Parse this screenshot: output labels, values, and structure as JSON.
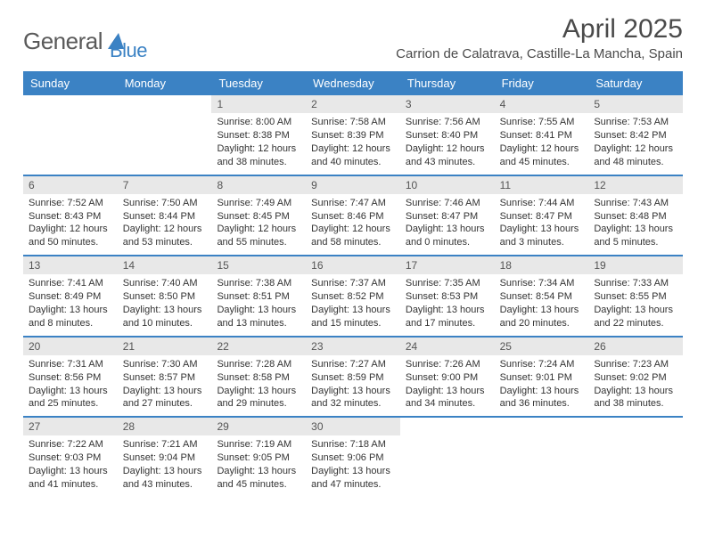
{
  "logo": {
    "word1": "General",
    "word2": "Blue"
  },
  "brand_color": "#3b82c4",
  "title": "April 2025",
  "location": "Carrion de Calatrava, Castille-La Mancha, Spain",
  "day_headers": [
    "Sunday",
    "Monday",
    "Tuesday",
    "Wednesday",
    "Thursday",
    "Friday",
    "Saturday"
  ],
  "colors": {
    "header_bg": "#3b82c4",
    "header_text": "#ffffff",
    "daynum_bg": "#e8e8e8",
    "row_divider": "#3b82c4",
    "body_text": "#333333",
    "title_text": "#4a4a4a"
  },
  "weeks": [
    [
      null,
      null,
      {
        "n": "1",
        "sunrise": "Sunrise: 8:00 AM",
        "sunset": "Sunset: 8:38 PM",
        "daylight": "Daylight: 12 hours and 38 minutes."
      },
      {
        "n": "2",
        "sunrise": "Sunrise: 7:58 AM",
        "sunset": "Sunset: 8:39 PM",
        "daylight": "Daylight: 12 hours and 40 minutes."
      },
      {
        "n": "3",
        "sunrise": "Sunrise: 7:56 AM",
        "sunset": "Sunset: 8:40 PM",
        "daylight": "Daylight: 12 hours and 43 minutes."
      },
      {
        "n": "4",
        "sunrise": "Sunrise: 7:55 AM",
        "sunset": "Sunset: 8:41 PM",
        "daylight": "Daylight: 12 hours and 45 minutes."
      },
      {
        "n": "5",
        "sunrise": "Sunrise: 7:53 AM",
        "sunset": "Sunset: 8:42 PM",
        "daylight": "Daylight: 12 hours and 48 minutes."
      }
    ],
    [
      {
        "n": "6",
        "sunrise": "Sunrise: 7:52 AM",
        "sunset": "Sunset: 8:43 PM",
        "daylight": "Daylight: 12 hours and 50 minutes."
      },
      {
        "n": "7",
        "sunrise": "Sunrise: 7:50 AM",
        "sunset": "Sunset: 8:44 PM",
        "daylight": "Daylight: 12 hours and 53 minutes."
      },
      {
        "n": "8",
        "sunrise": "Sunrise: 7:49 AM",
        "sunset": "Sunset: 8:45 PM",
        "daylight": "Daylight: 12 hours and 55 minutes."
      },
      {
        "n": "9",
        "sunrise": "Sunrise: 7:47 AM",
        "sunset": "Sunset: 8:46 PM",
        "daylight": "Daylight: 12 hours and 58 minutes."
      },
      {
        "n": "10",
        "sunrise": "Sunrise: 7:46 AM",
        "sunset": "Sunset: 8:47 PM",
        "daylight": "Daylight: 13 hours and 0 minutes."
      },
      {
        "n": "11",
        "sunrise": "Sunrise: 7:44 AM",
        "sunset": "Sunset: 8:47 PM",
        "daylight": "Daylight: 13 hours and 3 minutes."
      },
      {
        "n": "12",
        "sunrise": "Sunrise: 7:43 AM",
        "sunset": "Sunset: 8:48 PM",
        "daylight": "Daylight: 13 hours and 5 minutes."
      }
    ],
    [
      {
        "n": "13",
        "sunrise": "Sunrise: 7:41 AM",
        "sunset": "Sunset: 8:49 PM",
        "daylight": "Daylight: 13 hours and 8 minutes."
      },
      {
        "n": "14",
        "sunrise": "Sunrise: 7:40 AM",
        "sunset": "Sunset: 8:50 PM",
        "daylight": "Daylight: 13 hours and 10 minutes."
      },
      {
        "n": "15",
        "sunrise": "Sunrise: 7:38 AM",
        "sunset": "Sunset: 8:51 PM",
        "daylight": "Daylight: 13 hours and 13 minutes."
      },
      {
        "n": "16",
        "sunrise": "Sunrise: 7:37 AM",
        "sunset": "Sunset: 8:52 PM",
        "daylight": "Daylight: 13 hours and 15 minutes."
      },
      {
        "n": "17",
        "sunrise": "Sunrise: 7:35 AM",
        "sunset": "Sunset: 8:53 PM",
        "daylight": "Daylight: 13 hours and 17 minutes."
      },
      {
        "n": "18",
        "sunrise": "Sunrise: 7:34 AM",
        "sunset": "Sunset: 8:54 PM",
        "daylight": "Daylight: 13 hours and 20 minutes."
      },
      {
        "n": "19",
        "sunrise": "Sunrise: 7:33 AM",
        "sunset": "Sunset: 8:55 PM",
        "daylight": "Daylight: 13 hours and 22 minutes."
      }
    ],
    [
      {
        "n": "20",
        "sunrise": "Sunrise: 7:31 AM",
        "sunset": "Sunset: 8:56 PM",
        "daylight": "Daylight: 13 hours and 25 minutes."
      },
      {
        "n": "21",
        "sunrise": "Sunrise: 7:30 AM",
        "sunset": "Sunset: 8:57 PM",
        "daylight": "Daylight: 13 hours and 27 minutes."
      },
      {
        "n": "22",
        "sunrise": "Sunrise: 7:28 AM",
        "sunset": "Sunset: 8:58 PM",
        "daylight": "Daylight: 13 hours and 29 minutes."
      },
      {
        "n": "23",
        "sunrise": "Sunrise: 7:27 AM",
        "sunset": "Sunset: 8:59 PM",
        "daylight": "Daylight: 13 hours and 32 minutes."
      },
      {
        "n": "24",
        "sunrise": "Sunrise: 7:26 AM",
        "sunset": "Sunset: 9:00 PM",
        "daylight": "Daylight: 13 hours and 34 minutes."
      },
      {
        "n": "25",
        "sunrise": "Sunrise: 7:24 AM",
        "sunset": "Sunset: 9:01 PM",
        "daylight": "Daylight: 13 hours and 36 minutes."
      },
      {
        "n": "26",
        "sunrise": "Sunrise: 7:23 AM",
        "sunset": "Sunset: 9:02 PM",
        "daylight": "Daylight: 13 hours and 38 minutes."
      }
    ],
    [
      {
        "n": "27",
        "sunrise": "Sunrise: 7:22 AM",
        "sunset": "Sunset: 9:03 PM",
        "daylight": "Daylight: 13 hours and 41 minutes."
      },
      {
        "n": "28",
        "sunrise": "Sunrise: 7:21 AM",
        "sunset": "Sunset: 9:04 PM",
        "daylight": "Daylight: 13 hours and 43 minutes."
      },
      {
        "n": "29",
        "sunrise": "Sunrise: 7:19 AM",
        "sunset": "Sunset: 9:05 PM",
        "daylight": "Daylight: 13 hours and 45 minutes."
      },
      {
        "n": "30",
        "sunrise": "Sunrise: 7:18 AM",
        "sunset": "Sunset: 9:06 PM",
        "daylight": "Daylight: 13 hours and 47 minutes."
      },
      null,
      null,
      null
    ]
  ]
}
